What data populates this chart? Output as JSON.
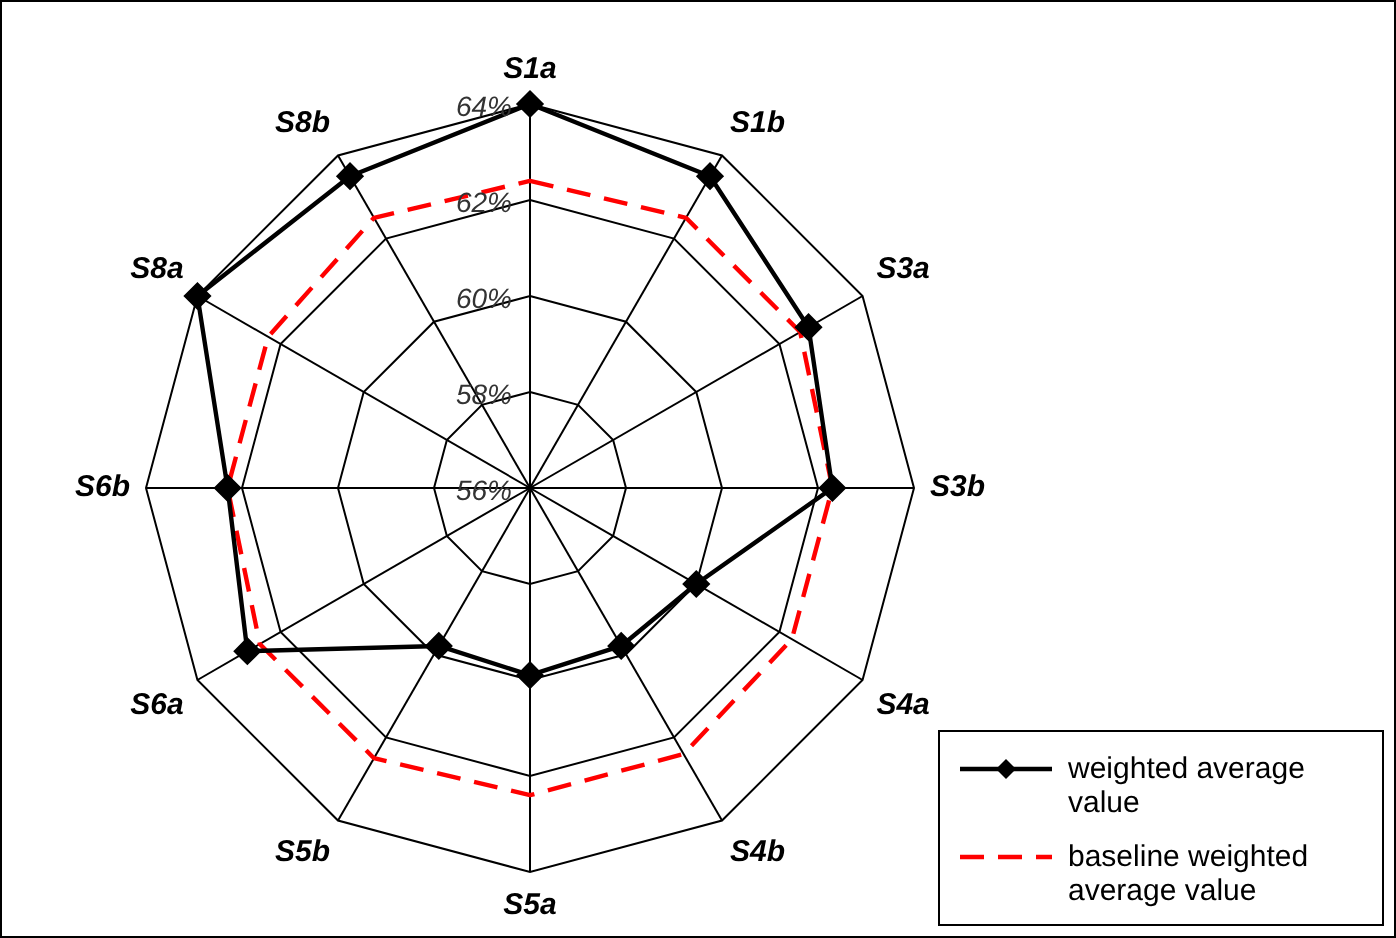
{
  "chart_data": {
    "type": "radar",
    "categories": [
      "S1a",
      "S1b",
      "S3a",
      "S3b",
      "S4a",
      "S4b",
      "S5a",
      "S5b",
      "S6a",
      "S6b",
      "S8a",
      "S8b"
    ],
    "ylim": [
      56,
      64
    ],
    "yticks": [
      {
        "value": 56,
        "label": "56%"
      },
      {
        "value": 58,
        "label": "58%"
      },
      {
        "value": 60,
        "label": "60%"
      },
      {
        "value": 62,
        "label": "62%"
      },
      {
        "value": 64,
        "label": "64%"
      }
    ],
    "series": [
      {
        "name": "weighted average value",
        "color": "#000000",
        "marker": "diamond",
        "line_style": "solid",
        "values": [
          64.0,
          63.5,
          62.7,
          62.3,
          60.0,
          59.8,
          59.9,
          59.8,
          62.8,
          62.3,
          64.0,
          63.5
        ]
      },
      {
        "name": "baseline weighted average value",
        "color": "#ff0000",
        "marker": "none",
        "line_style": "dashed",
        "values": [
          62.4,
          62.5,
          62.5,
          62.3,
          62.3,
          62.4,
          62.4,
          62.5,
          62.5,
          62.3,
          62.3,
          62.5
        ]
      }
    ],
    "legend": "bottom right",
    "grid": true
  }
}
